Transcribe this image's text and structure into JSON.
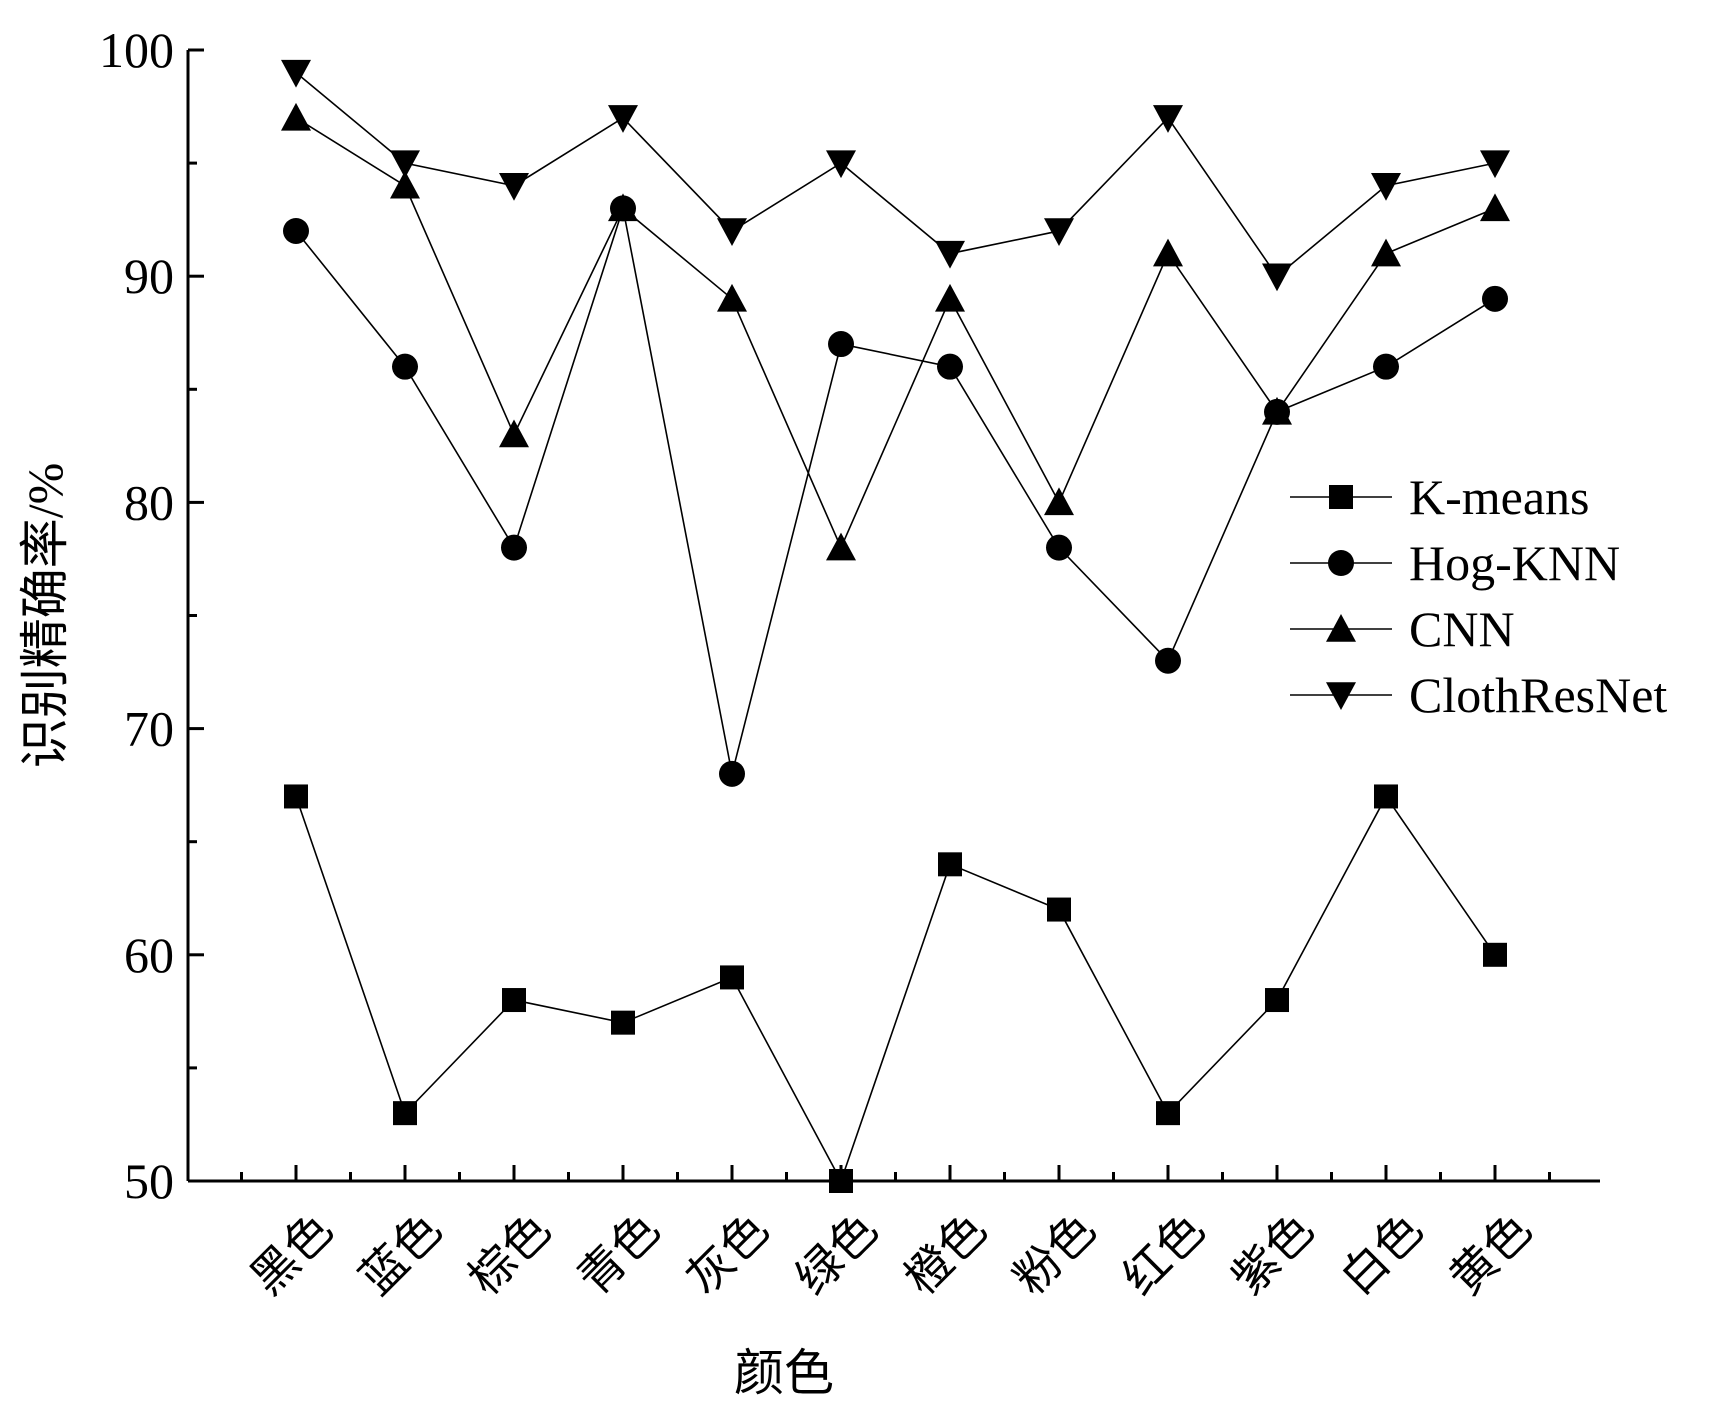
{
  "chart_data": {
    "type": "line",
    "title": "",
    "xlabel": "颜色",
    "ylabel": "识别精确率/%",
    "ylim": [
      50,
      100
    ],
    "yticks": [
      50,
      60,
      70,
      80,
      90,
      100
    ],
    "grid": false,
    "legend_position": "right",
    "categories": [
      "黑色",
      "蓝色",
      "棕色",
      "青色",
      "灰色",
      "绿色",
      "橙色",
      "粉色",
      "红色",
      "紫色",
      "白色",
      "黄色"
    ],
    "series": [
      {
        "name": "K-means",
        "marker": "square",
        "values": [
          67,
          53,
          58,
          57,
          59,
          50,
          64,
          62,
          53,
          58,
          67,
          60
        ]
      },
      {
        "name": "Hog-KNN",
        "marker": "circle",
        "values": [
          92,
          86,
          78,
          93,
          68,
          87,
          86,
          78,
          73,
          84,
          86,
          89
        ]
      },
      {
        "name": "CNN",
        "marker": "triangle-up",
        "values": [
          97,
          94,
          83,
          93,
          89,
          78,
          89,
          80,
          91,
          84,
          91,
          93
        ]
      },
      {
        "name": "ClothResNet",
        "marker": "triangle-down",
        "values": [
          99,
          95,
          94,
          97,
          92,
          95,
          91,
          92,
          97,
          90,
          94,
          95
        ]
      }
    ]
  }
}
